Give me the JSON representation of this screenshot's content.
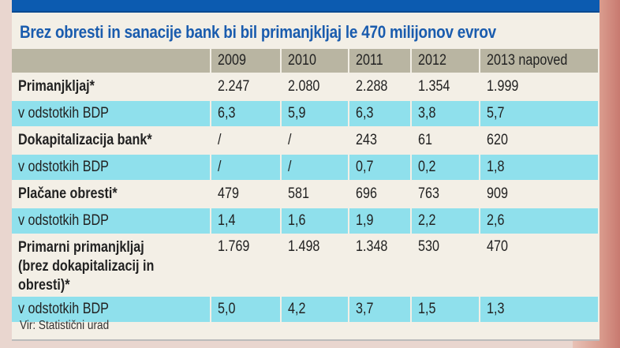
{
  "chart_data": {
    "type": "table",
    "title": "Brez obresti in sanacije bank bi bil primanjkljaj le 470 milijonov evrov",
    "columns": [
      "",
      "2009",
      "2010",
      "2011",
      "2012",
      "2013 napoved"
    ],
    "rows": [
      {
        "kind": "main",
        "cells": [
          "Primanjkljaj*",
          "2.247",
          "2.080",
          "2.288",
          "1.354",
          "1.999"
        ]
      },
      {
        "kind": "pct",
        "cells": [
          "v odstotkih BDP",
          "6,3",
          "5,9",
          "6,3",
          "3,8",
          "5,7"
        ]
      },
      {
        "kind": "main",
        "cells": [
          "Dokapitalizacija bank*",
          "/",
          "/",
          "243",
          "61",
          "620"
        ]
      },
      {
        "kind": "pct",
        "cells": [
          "v odstotkih BDP",
          "/",
          "/",
          "0,7",
          "0,2",
          "1,8"
        ]
      },
      {
        "kind": "main",
        "cells": [
          "Plačane obresti*",
          "479",
          "581",
          "696",
          "763",
          "909"
        ]
      },
      {
        "kind": "pct",
        "cells": [
          "v odstotkih BDP",
          "1,4",
          "1,6",
          "1,9",
          "2,2",
          "2,6"
        ]
      },
      {
        "kind": "main tall",
        "cells": [
          "Primarni primanjkljaj (brez dokapitalizacij in obresti)*",
          "1.769",
          "1.498",
          "1.348",
          "530",
          "470"
        ]
      },
      {
        "kind": "pct",
        "cells": [
          "v odstotkih BDP",
          "5,0",
          "4,2",
          "3,7",
          "1,5",
          "1,3"
        ]
      }
    ],
    "source": "Vir: Statistični urad"
  },
  "colors": {
    "title": "#1a5cae",
    "header": "#b9b5a2",
    "highlight_row": "#8fe0ec",
    "top_bar": "#0c5bb0"
  }
}
